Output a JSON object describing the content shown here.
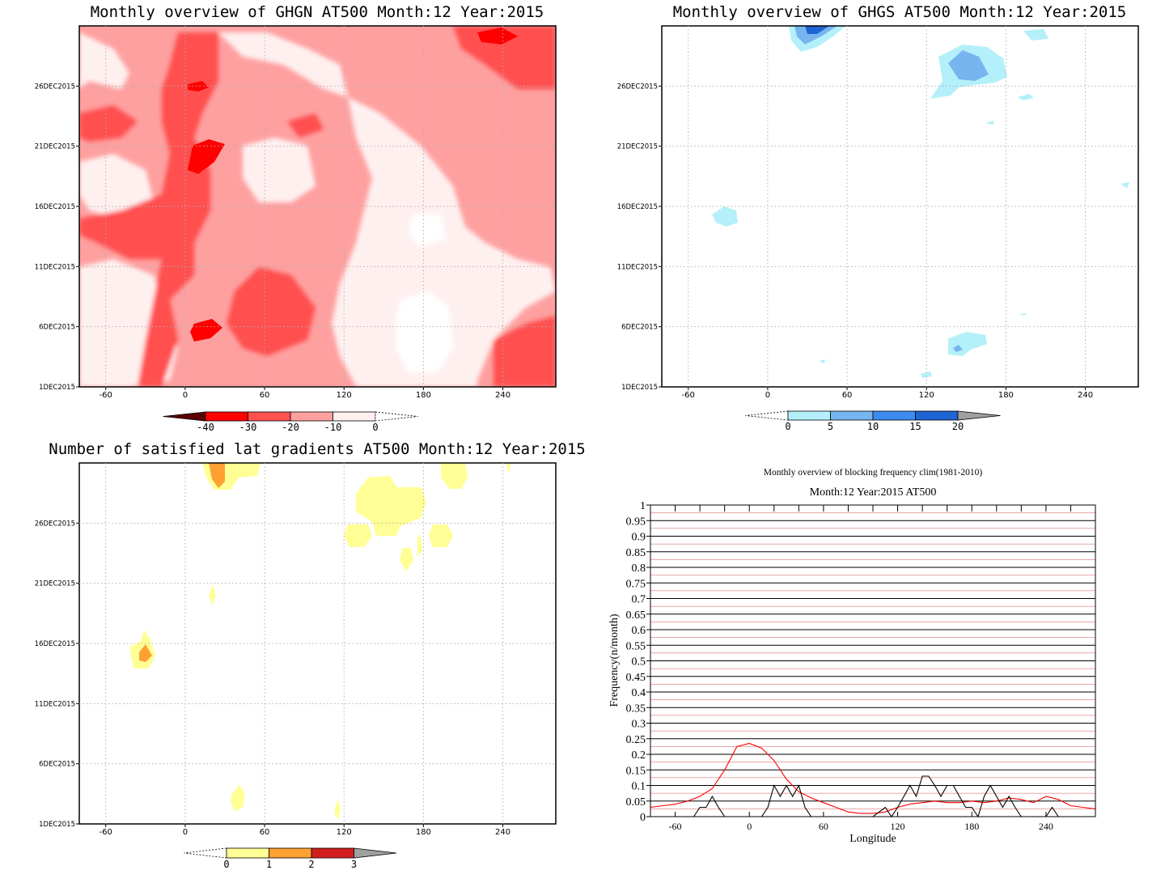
{
  "chart_data": [
    {
      "type": "heatmap",
      "title": "Monthly overview of GHGN AT500 Month:12 Year:2015",
      "xticks": [
        "-60",
        "0",
        "60",
        "120",
        "180",
        "240"
      ],
      "yticks": [
        "1DEC2015",
        "6DEC2015",
        "11DEC2015",
        "16DEC2015",
        "21DEC2015",
        "26DEC2015"
      ],
      "xlim": [
        -80,
        280
      ],
      "colorbar": {
        "ticks": [
          "-40",
          "-30",
          "-20",
          "-10",
          "0"
        ],
        "colors": [
          "#5a0000",
          "#ff0000",
          "#ff5050",
          "#ffa0a0",
          "#fff0f0"
        ]
      }
    },
    {
      "type": "heatmap",
      "title": "Monthly overview of GHGS AT500 Month:12 Year:2015",
      "xticks": [
        "-60",
        "0",
        "60",
        "120",
        "180",
        "240"
      ],
      "yticks": [
        "1DEC2015",
        "6DEC2015",
        "11DEC2015",
        "16DEC2015",
        "21DEC2015",
        "26DEC2015"
      ],
      "xlim": [
        -80,
        280
      ],
      "colorbar": {
        "ticks": [
          "0",
          "5",
          "10",
          "15",
          "20"
        ],
        "colors": [
          "#b4f0fa",
          "#78b4f0",
          "#3c8cf0",
          "#1e64d2",
          "#a0a0a0"
        ]
      }
    },
    {
      "type": "heatmap",
      "title": "Number of satisfied lat gradients AT500 Month:12 Year:2015",
      "xticks": [
        "-60",
        "0",
        "60",
        "120",
        "180",
        "240"
      ],
      "yticks": [
        "1DEC2015",
        "6DEC2015",
        "11DEC2015",
        "16DEC2015",
        "21DEC2015",
        "26DEC2015"
      ],
      "xlim": [
        -80,
        280
      ],
      "colorbar": {
        "ticks": [
          "0",
          "1",
          "2",
          "3"
        ],
        "colors": [
          "#ffff96",
          "#ffa032",
          "#d21e1e",
          "#a0a0a0"
        ]
      }
    },
    {
      "type": "line",
      "title": "Monthly overview of blocking frequency clim(1981-2010)",
      "subtitle": "Month:12 Year:2015  AT500",
      "xlabel": "Longitude",
      "ylabel": "Frequency(n/month)",
      "xlim": [
        -80,
        280
      ],
      "ylim": [
        0,
        1
      ],
      "xticks": [
        "-60",
        "0",
        "60",
        "120",
        "180",
        "240"
      ],
      "yticks": [
        "0",
        "0.05",
        "0.1",
        "0.15",
        "0.2",
        "0.25",
        "0.3",
        "0.35",
        "0.4",
        "0.45",
        "0.5",
        "0.55",
        "0.6",
        "0.65",
        "0.7",
        "0.75",
        "0.8",
        "0.85",
        "0.9",
        "0.95",
        "1"
      ],
      "series": [
        {
          "color": "#ff0000",
          "x": [
            -80,
            -70,
            -60,
            -50,
            -40,
            -30,
            -20,
            -10,
            0,
            10,
            20,
            30,
            40,
            50,
            60,
            70,
            80,
            90,
            100,
            110,
            120,
            130,
            140,
            150,
            160,
            170,
            180,
            190,
            200,
            210,
            220,
            230,
            240,
            250,
            260,
            270,
            280
          ],
          "y": [
            0.03,
            0.035,
            0.04,
            0.05,
            0.065,
            0.09,
            0.15,
            0.225,
            0.235,
            0.22,
            0.18,
            0.12,
            0.08,
            0.06,
            0.045,
            0.03,
            0.015,
            0.01,
            0.01,
            0.015,
            0.03,
            0.04,
            0.045,
            0.05,
            0.045,
            0.045,
            0.05,
            0.045,
            0.05,
            0.06,
            0.055,
            0.045,
            0.065,
            0.055,
            0.035,
            0.03,
            0.025
          ]
        },
        {
          "color": "#000000",
          "x": [
            -80,
            -45,
            -40,
            -35,
            -30,
            -25,
            -20,
            -10,
            0,
            10,
            15,
            20,
            25,
            30,
            35,
            40,
            45,
            50,
            60,
            100,
            110,
            115,
            120,
            125,
            130,
            135,
            140,
            145,
            150,
            155,
            160,
            165,
            170,
            175,
            180,
            185,
            190,
            195,
            200,
            205,
            210,
            215,
            220,
            225,
            240,
            245,
            250,
            255,
            280
          ],
          "y": [
            0,
            0,
            0.03,
            0.03,
            0.065,
            0.03,
            0,
            0,
            0,
            0,
            0.03,
            0.1,
            0.065,
            0.1,
            0.065,
            0.1,
            0.03,
            0,
            0,
            0,
            0.03,
            0,
            0.03,
            0.065,
            0.1,
            0.065,
            0.13,
            0.13,
            0.1,
            0.065,
            0.1,
            0.1,
            0.065,
            0.03,
            0.03,
            0,
            0.065,
            0.1,
            0.065,
            0.03,
            0.065,
            0.03,
            0,
            0,
            0,
            0.03,
            0,
            0,
            0
          ]
        }
      ]
    }
  ]
}
